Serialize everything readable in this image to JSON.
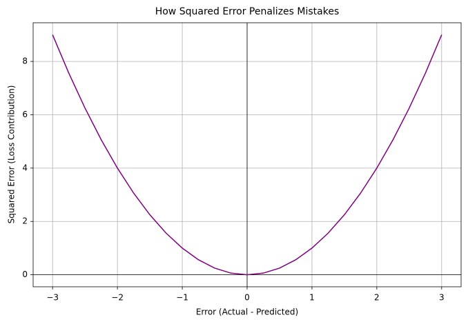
{
  "chart_data": {
    "type": "line",
    "title": "How Squared Error Penalizes Mistakes",
    "xlabel": "Error (Actual - Predicted)",
    "ylabel": "Squared Error (Loss Contribution)",
    "x": [
      -3,
      -2.75,
      -2.5,
      -2.25,
      -2,
      -1.75,
      -1.5,
      -1.25,
      -1,
      -0.75,
      -0.5,
      -0.25,
      0,
      0.25,
      0.5,
      0.75,
      1,
      1.25,
      1.5,
      1.75,
      2,
      2.25,
      2.5,
      2.75,
      3
    ],
    "values": [
      9,
      7.5625,
      6.25,
      5.0625,
      4,
      3.0625,
      2.25,
      1.5625,
      1,
      0.5625,
      0.25,
      0.0625,
      0,
      0.0625,
      0.25,
      0.5625,
      1,
      1.5625,
      2.25,
      3.0625,
      4,
      5.0625,
      6.25,
      7.5625,
      9
    ],
    "color": "#800080",
    "xlim": [
      -3.3,
      3.3
    ],
    "ylim": [
      -0.45,
      9.45
    ],
    "xticks": [
      {
        "value": -3,
        "label": "−3"
      },
      {
        "value": -2,
        "label": "−2"
      },
      {
        "value": -1,
        "label": "−1"
      },
      0,
      1,
      2,
      3
    ],
    "yticks": [
      0,
      2,
      4,
      6,
      8
    ],
    "grid": true,
    "hlines": [
      0
    ],
    "vlines": [
      0
    ]
  }
}
